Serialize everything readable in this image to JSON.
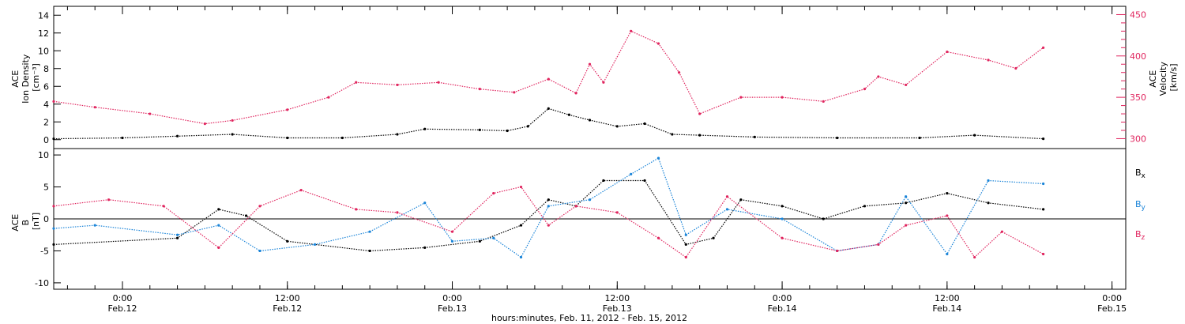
{
  "chart_data": [
    {
      "type": "scatter",
      "panel": "top",
      "ylabel_lines": [
        "ACE",
        "Ion Density",
        "[cm⁻³]"
      ],
      "ylim": [
        -1,
        15
      ],
      "yticks": [
        0,
        2,
        4,
        6,
        8,
        10,
        12,
        14
      ],
      "right_axis": {
        "ylabel_lines": [
          "ACE",
          "Velocity",
          "[km/s]"
        ],
        "ylim": [
          288,
          460
        ],
        "yticks": [
          300,
          350,
          400,
          450
        ],
        "color": "#e0245e"
      },
      "series": [
        {
          "key": "density",
          "color": "#000000",
          "axis": "left",
          "x": [
            "2012-02-11 19:00",
            "2012-02-12 00:00",
            "2012-02-12 04:00",
            "2012-02-12 08:00",
            "2012-02-12 12:00",
            "2012-02-12 16:00",
            "2012-02-12 20:00",
            "2012-02-12 22:00",
            "2012-02-13 02:00",
            "2012-02-13 04:00",
            "2012-02-13 05:30",
            "2012-02-13 07:00",
            "2012-02-13 08:30",
            "2012-02-13 10:00",
            "2012-02-13 12:00",
            "2012-02-13 14:00",
            "2012-02-13 16:00",
            "2012-02-13 18:00",
            "2012-02-13 22:00",
            "2012-02-14 04:00",
            "2012-02-14 10:00",
            "2012-02-14 14:00",
            "2012-02-14 19:00"
          ],
          "y": [
            0.1,
            0.2,
            0.4,
            0.6,
            0.2,
            0.2,
            0.6,
            1.2,
            1.1,
            1.0,
            1.5,
            3.5,
            2.8,
            2.2,
            1.5,
            1.8,
            0.6,
            0.5,
            0.3,
            0.2,
            0.2,
            0.5,
            0.1
          ]
        },
        {
          "key": "velocity",
          "color": "#e0245e",
          "axis": "right",
          "x": [
            "2012-02-11 19:00",
            "2012-02-11 22:00",
            "2012-02-12 02:00",
            "2012-02-12 06:00",
            "2012-02-12 08:00",
            "2012-02-12 12:00",
            "2012-02-12 15:00",
            "2012-02-12 17:00",
            "2012-02-12 20:00",
            "2012-02-12 23:00",
            "2012-02-13 02:00",
            "2012-02-13 04:30",
            "2012-02-13 07:00",
            "2012-02-13 09:00",
            "2012-02-13 10:00",
            "2012-02-13 11:00",
            "2012-02-13 13:00",
            "2012-02-13 15:00",
            "2012-02-13 16:30",
            "2012-02-13 18:00",
            "2012-02-13 21:00",
            "2012-02-14 00:00",
            "2012-02-14 03:00",
            "2012-02-14 06:00",
            "2012-02-14 07:00",
            "2012-02-14 09:00",
            "2012-02-14 12:00",
            "2012-02-14 15:00",
            "2012-02-14 17:00",
            "2012-02-14 19:00"
          ],
          "y": [
            345,
            338,
            330,
            318,
            322,
            335,
            350,
            368,
            365,
            368,
            360,
            356,
            372,
            355,
            390,
            368,
            430,
            415,
            380,
            330,
            350,
            350,
            345,
            360,
            375,
            365,
            405,
            395,
            385,
            410
          ]
        }
      ]
    },
    {
      "type": "scatter",
      "panel": "bottom",
      "ylabel_lines": [
        "ACE",
        "B",
        "[nT]"
      ],
      "ylim": [
        -11,
        11
      ],
      "yticks": [
        -10,
        -5,
        0,
        5,
        10
      ],
      "zero_line": true,
      "series": [
        {
          "key": "bx",
          "name": "Bx",
          "color": "#000000",
          "x": [
            "2012-02-11 19:00",
            "2012-02-12 04:00",
            "2012-02-12 07:00",
            "2012-02-12 09:00",
            "2012-02-12 12:00",
            "2012-02-12 18:00",
            "2012-02-12 22:00",
            "2012-02-13 02:00",
            "2012-02-13 05:00",
            "2012-02-13 07:00",
            "2012-02-13 09:00",
            "2012-02-13 11:00",
            "2012-02-13 14:00",
            "2012-02-13 17:00",
            "2012-02-13 19:00",
            "2012-02-13 21:00",
            "2012-02-14 00:00",
            "2012-02-14 03:00",
            "2012-02-14 06:00",
            "2012-02-14 09:00",
            "2012-02-14 12:00",
            "2012-02-14 15:00",
            "2012-02-14 19:00"
          ],
          "y": [
            -4.0,
            -3.0,
            1.5,
            0.5,
            -3.5,
            -5.0,
            -4.5,
            -3.5,
            -1.0,
            3.0,
            2.0,
            6.0,
            6.0,
            -4.0,
            -3.0,
            3.0,
            2.0,
            0.0,
            2.0,
            2.5,
            4.0,
            2.5,
            1.5
          ]
        },
        {
          "key": "by",
          "name": "By",
          "color": "#1a84d8",
          "x": [
            "2012-02-11 19:00",
            "2012-02-11 22:00",
            "2012-02-12 04:00",
            "2012-02-12 07:00",
            "2012-02-12 10:00",
            "2012-02-12 14:00",
            "2012-02-12 18:00",
            "2012-02-12 22:00",
            "2012-02-13 00:00",
            "2012-02-13 03:00",
            "2012-02-13 05:00",
            "2012-02-13 07:00",
            "2012-02-13 10:00",
            "2012-02-13 13:00",
            "2012-02-13 15:00",
            "2012-02-13 17:00",
            "2012-02-13 20:00",
            "2012-02-14 00:00",
            "2012-02-14 04:00",
            "2012-02-14 07:00",
            "2012-02-14 09:00",
            "2012-02-14 12:00",
            "2012-02-14 15:00",
            "2012-02-14 19:00"
          ],
          "y": [
            -1.5,
            -1.0,
            -2.5,
            -1.0,
            -5.0,
            -4.0,
            -2.0,
            2.5,
            -3.5,
            -3.0,
            -6.0,
            2.0,
            3.0,
            7.0,
            9.5,
            -2.5,
            1.5,
            0.0,
            -5.0,
            -4.0,
            3.5,
            -5.5,
            6.0,
            5.5
          ]
        },
        {
          "key": "bz",
          "name": "Bz",
          "color": "#e0245e",
          "x": [
            "2012-02-11 19:00",
            "2012-02-11 23:00",
            "2012-02-12 03:00",
            "2012-02-12 07:00",
            "2012-02-12 10:00",
            "2012-02-12 13:00",
            "2012-02-12 17:00",
            "2012-02-12 20:00",
            "2012-02-13 00:00",
            "2012-02-13 03:00",
            "2012-02-13 05:00",
            "2012-02-13 07:00",
            "2012-02-13 09:00",
            "2012-02-13 12:00",
            "2012-02-13 15:00",
            "2012-02-13 17:00",
            "2012-02-13 20:00",
            "2012-02-14 00:00",
            "2012-02-14 04:00",
            "2012-02-14 07:00",
            "2012-02-14 09:00",
            "2012-02-14 12:00",
            "2012-02-14 14:00",
            "2012-02-14 16:00",
            "2012-02-14 19:00"
          ],
          "y": [
            2.0,
            3.0,
            2.0,
            -4.5,
            2.0,
            4.5,
            1.5,
            1.0,
            -2.0,
            4.0,
            5.0,
            -1.0,
            2.0,
            1.0,
            -3.0,
            -6.0,
            3.5,
            -3.0,
            -5.0,
            -4.0,
            -1.0,
            0.5,
            -6.0,
            -2.0,
            -5.5
          ]
        }
      ]
    }
  ],
  "xaxis": {
    "start": "2012-02-11 19:00",
    "end": "2012-02-15 01:00",
    "ticks": [
      {
        "time": "2012-02-12 00:00",
        "label": "0:00",
        "date": "Feb.12"
      },
      {
        "time": "2012-02-12 12:00",
        "label": "12:00",
        "date": "Feb.12"
      },
      {
        "time": "2012-02-13 00:00",
        "label": "0:00",
        "date": "Feb.13"
      },
      {
        "time": "2012-02-13 12:00",
        "label": "12:00",
        "date": "Feb.13"
      },
      {
        "time": "2012-02-14 00:00",
        "label": "0:00",
        "date": "Feb.14"
      },
      {
        "time": "2012-02-14 12:00",
        "label": "12:00",
        "date": "Feb.14"
      },
      {
        "time": "2012-02-15 00:00",
        "label": "0:00",
        "date": "Feb.15"
      }
    ],
    "label": "hours:minutes, Feb. 11, 2012 - Feb. 15, 2012"
  },
  "legend": {
    "bx": {
      "main": "B",
      "sub": "x"
    },
    "by": {
      "main": "B",
      "sub": "y"
    },
    "bz": {
      "main": "B",
      "sub": "z"
    }
  }
}
